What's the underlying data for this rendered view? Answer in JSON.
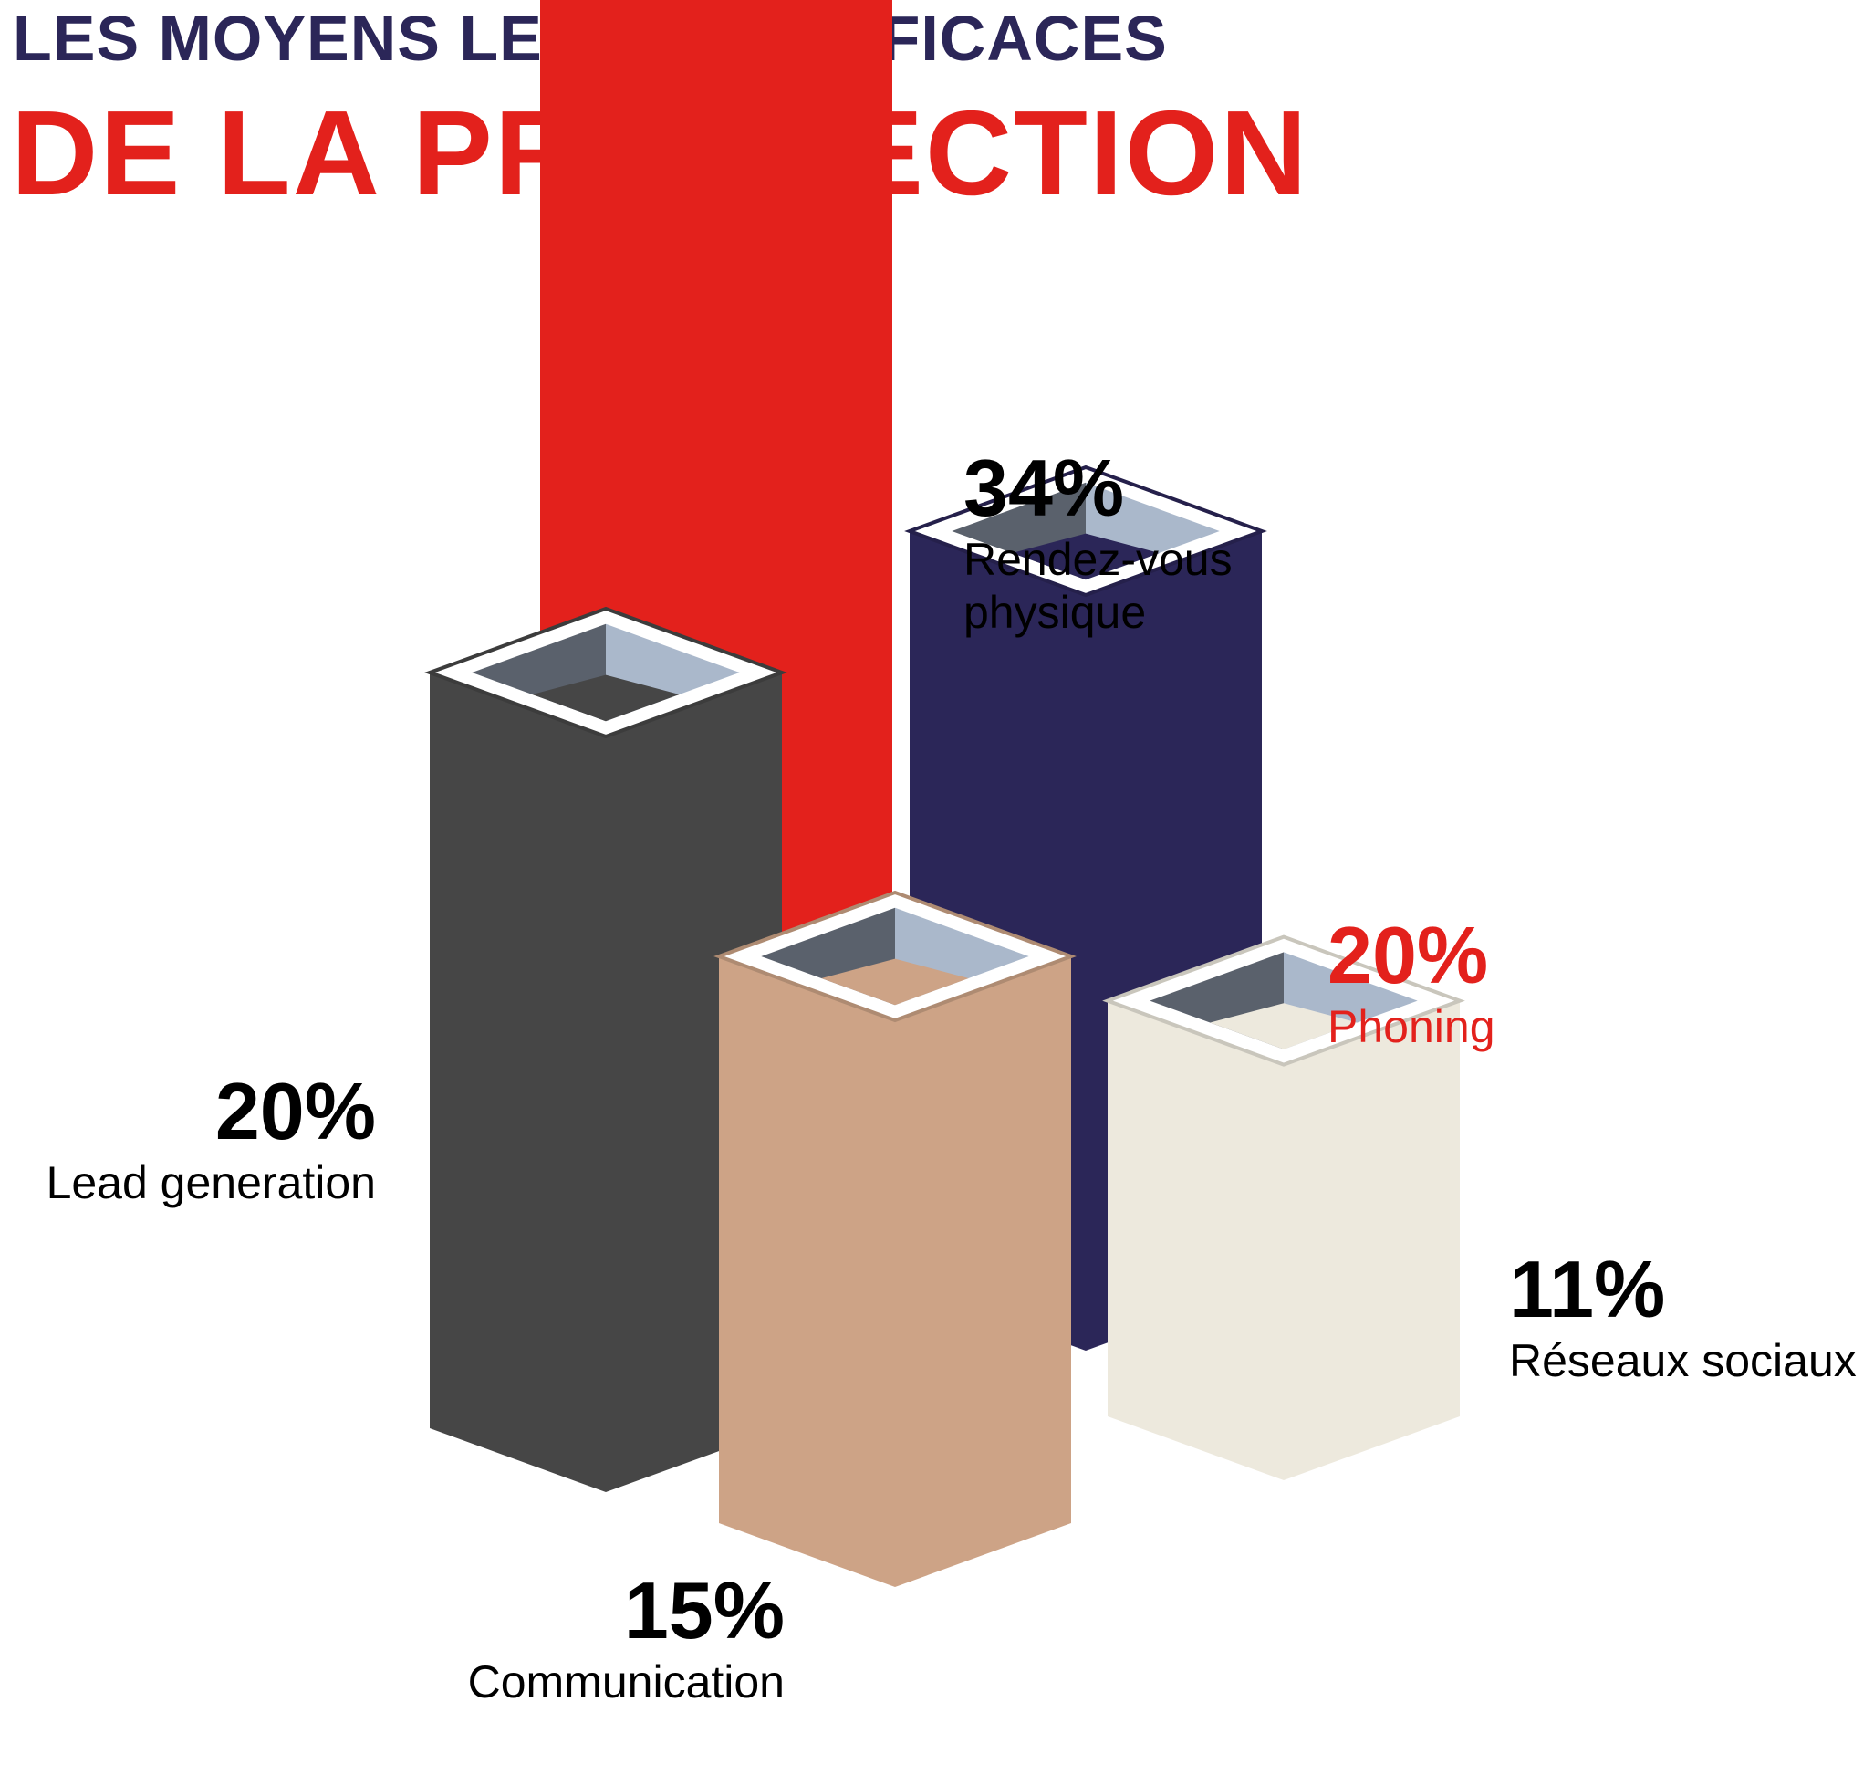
{
  "header": {
    "line1": "LES MOYENS LES PLUS EFFICACES",
    "line2": "DE LA PROSPECTION"
  },
  "colors": {
    "title_dark": "#2b2658",
    "title_red": "#e3211c",
    "inner_left": "#5a616c",
    "inner_right": "#aab8cb"
  },
  "chart_data": {
    "type": "bar",
    "title": "LES MOYENS LES PLUS EFFICACES DE LA PROSPECTION",
    "style": "3d-isometric-columns",
    "categories": [
      "Rendez-vous physique",
      "Phoning",
      "Lead generation",
      "Communication",
      "Réseaux sociaux"
    ],
    "values": [
      34,
      20,
      20,
      15,
      11
    ],
    "unit": "%",
    "bars": [
      {
        "id": "rendez-vous",
        "percent": "34%",
        "label_lines": [
          "Rendez-vous",
          "physique"
        ],
        "value": 34,
        "color": "#e3211c",
        "label_color": "#000000"
      },
      {
        "id": "phoning",
        "percent": "20%",
        "label_lines": [
          "Phoning"
        ],
        "value": 20,
        "color": "#2b2658",
        "label_color": "#e3211c"
      },
      {
        "id": "lead-generation",
        "percent": "20%",
        "label_lines": [
          "Lead generation"
        ],
        "value": 20,
        "color": "#464646",
        "label_color": "#000000"
      },
      {
        "id": "communication",
        "percent": "15%",
        "label_lines": [
          "Communication"
        ],
        "value": 15,
        "color": "#cda386",
        "label_color": "#000000"
      },
      {
        "id": "reseaux-sociaux",
        "percent": "11%",
        "label_lines": [
          "Réseaux sociaux"
        ],
        "value": 11,
        "color": "#ede9dd",
        "label_color": "#000000"
      }
    ]
  }
}
